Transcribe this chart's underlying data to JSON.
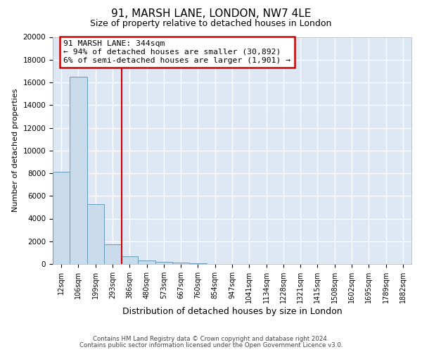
{
  "title1": "91, MARSH LANE, LONDON, NW7 4LE",
  "title2": "Size of property relative to detached houses in London",
  "xlabel": "Distribution of detached houses by size in London",
  "ylabel": "Number of detached properties",
  "bar_labels": [
    "12sqm",
    "106sqm",
    "199sqm",
    "293sqm",
    "386sqm",
    "480sqm",
    "573sqm",
    "667sqm",
    "760sqm",
    "854sqm",
    "947sqm",
    "1041sqm",
    "1134sqm",
    "1228sqm",
    "1321sqm",
    "1415sqm",
    "1508sqm",
    "1602sqm",
    "1695sqm",
    "1789sqm",
    "1882sqm"
  ],
  "bar_heights": [
    8100,
    16500,
    5300,
    1750,
    700,
    280,
    180,
    100,
    80,
    0,
    0,
    0,
    0,
    0,
    0,
    0,
    0,
    0,
    0,
    0,
    0
  ],
  "bar_color": "#c9daea",
  "bar_edge_color": "#6699bb",
  "ylim": [
    0,
    20000
  ],
  "yticks": [
    0,
    2000,
    4000,
    6000,
    8000,
    10000,
    12000,
    14000,
    16000,
    18000,
    20000
  ],
  "vline_x": 3.55,
  "vline_color": "#cc0000",
  "annotation_title": "91 MARSH LANE: 344sqm",
  "annotation_line1": "← 94% of detached houses are smaller (30,892)",
  "annotation_line2": "6% of semi-detached houses are larger (1,901) →",
  "annotation_box_color": "#ffffff",
  "annotation_box_edge": "#cc0000",
  "footer1": "Contains HM Land Registry data © Crown copyright and database right 2024.",
  "footer2": "Contains public sector information licensed under the Open Government Licence v3.0.",
  "bg_color": "#dde8f4",
  "grid_color": "#ffffff",
  "fig_bg": "#ffffff"
}
